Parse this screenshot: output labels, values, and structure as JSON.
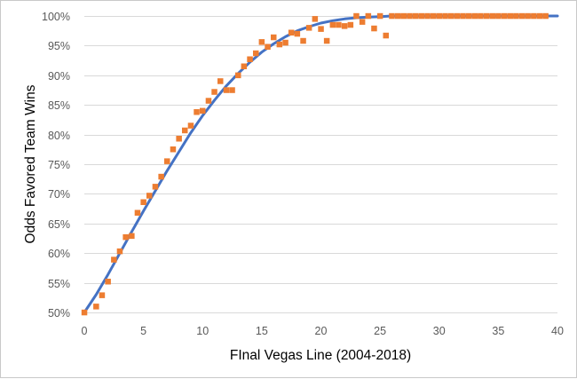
{
  "chart_data": {
    "type": "scatter",
    "title": "",
    "xlabel": "FInal Vegas Line (2004-2018)",
    "ylabel": "Odds Favored Team Wins",
    "xlim": [
      0,
      40
    ],
    "ylim": [
      0.5,
      1.0
    ],
    "x_ticks": [
      0,
      5,
      10,
      15,
      20,
      25,
      30,
      35,
      40
    ],
    "y_ticks": [
      0.5,
      0.55,
      0.6,
      0.65,
      0.7,
      0.75,
      0.8,
      0.85,
      0.9,
      0.95,
      1.0
    ],
    "x_tick_labels": [
      "0",
      "5",
      "10",
      "15",
      "20",
      "25",
      "30",
      "35",
      "40"
    ],
    "y_tick_labels": [
      "50%",
      "55%",
      "60%",
      "65%",
      "70%",
      "75%",
      "80%",
      "85%",
      "90%",
      "95%",
      "100%"
    ],
    "grid": "horizontal",
    "legend": "none",
    "colors": {
      "points": "#ed7d31",
      "curve": "#4472c4",
      "grid": "#d9d9d9",
      "border": "#c9c9c9"
    },
    "series": [
      {
        "type": "scatter",
        "marker": "square",
        "points": [
          [
            0,
            0.5
          ],
          [
            1,
            0.51
          ],
          [
            1.5,
            0.529
          ],
          [
            2,
            0.552
          ],
          [
            2.5,
            0.589
          ],
          [
            3,
            0.603
          ],
          [
            3.5,
            0.627
          ],
          [
            4,
            0.629
          ],
          [
            4.5,
            0.668
          ],
          [
            5,
            0.686
          ],
          [
            5.5,
            0.697
          ],
          [
            6,
            0.712
          ],
          [
            6.5,
            0.729
          ],
          [
            7,
            0.755
          ],
          [
            7.5,
            0.775
          ],
          [
            8,
            0.793
          ],
          [
            8.5,
            0.807
          ],
          [
            9,
            0.815
          ],
          [
            9.5,
            0.838
          ],
          [
            10,
            0.84
          ],
          [
            10.5,
            0.857
          ],
          [
            11,
            0.872
          ],
          [
            11.5,
            0.89
          ],
          [
            12,
            0.875
          ],
          [
            12.5,
            0.875
          ],
          [
            13,
            0.9
          ],
          [
            13.5,
            0.915
          ],
          [
            14,
            0.927
          ],
          [
            14.5,
            0.937
          ],
          [
            15,
            0.956
          ],
          [
            15.5,
            0.948
          ],
          [
            16,
            0.964
          ],
          [
            16.5,
            0.952
          ],
          [
            17,
            0.955
          ],
          [
            17.5,
            0.972
          ],
          [
            18,
            0.97
          ],
          [
            18.5,
            0.958
          ],
          [
            19,
            0.98
          ],
          [
            19.5,
            0.995
          ],
          [
            20,
            0.978
          ],
          [
            20.5,
            0.958
          ],
          [
            21,
            0.985
          ],
          [
            21.5,
            0.985
          ],
          [
            22,
            0.983
          ],
          [
            22.5,
            0.985
          ],
          [
            23,
            1.0
          ],
          [
            23.5,
            0.99
          ],
          [
            24,
            1.0
          ],
          [
            24.5,
            0.979
          ],
          [
            25,
            1.0
          ],
          [
            25.5,
            0.967
          ],
          [
            26,
            1.0
          ],
          [
            26.5,
            1.0
          ],
          [
            27,
            1.0
          ],
          [
            27.5,
            1.0
          ],
          [
            28,
            1.0
          ],
          [
            28.5,
            1.0
          ],
          [
            29,
            1.0
          ],
          [
            29.5,
            1.0
          ],
          [
            30,
            1.0
          ],
          [
            30.5,
            1.0
          ],
          [
            31,
            1.0
          ],
          [
            31.5,
            1.0
          ],
          [
            32,
            1.0
          ],
          [
            32.5,
            1.0
          ],
          [
            33,
            1.0
          ],
          [
            33.5,
            1.0
          ],
          [
            34,
            1.0
          ],
          [
            34.5,
            1.0
          ],
          [
            35,
            1.0
          ],
          [
            35.5,
            1.0
          ],
          [
            36,
            1.0
          ],
          [
            36.5,
            1.0
          ],
          [
            37,
            1.0
          ],
          [
            37.5,
            1.0
          ],
          [
            38,
            1.0
          ],
          [
            38.5,
            1.0
          ],
          [
            39,
            1.0
          ]
        ]
      },
      {
        "type": "line",
        "points": [
          [
            0,
            0.5
          ],
          [
            1,
            0.53
          ],
          [
            2,
            0.564
          ],
          [
            3,
            0.6
          ],
          [
            4,
            0.636
          ],
          [
            5,
            0.671
          ],
          [
            6,
            0.705
          ],
          [
            7,
            0.739
          ],
          [
            8,
            0.771
          ],
          [
            9,
            0.803
          ],
          [
            10,
            0.832
          ],
          [
            11,
            0.858
          ],
          [
            12,
            0.882
          ],
          [
            13,
            0.903
          ],
          [
            14,
            0.922
          ],
          [
            15,
            0.939
          ],
          [
            16,
            0.953
          ],
          [
            17,
            0.965
          ],
          [
            18,
            0.975
          ],
          [
            19,
            0.982
          ],
          [
            20,
            0.988
          ],
          [
            21,
            0.992
          ],
          [
            22,
            0.995
          ],
          [
            23,
            0.997
          ],
          [
            24,
            0.998
          ],
          [
            25,
            0.999
          ],
          [
            26,
            1.0
          ],
          [
            28,
            1.0
          ],
          [
            30,
            1.0
          ],
          [
            32,
            1.0
          ],
          [
            34,
            1.0
          ],
          [
            36,
            1.0
          ],
          [
            38,
            1.0
          ],
          [
            40,
            1.0
          ]
        ]
      }
    ]
  }
}
